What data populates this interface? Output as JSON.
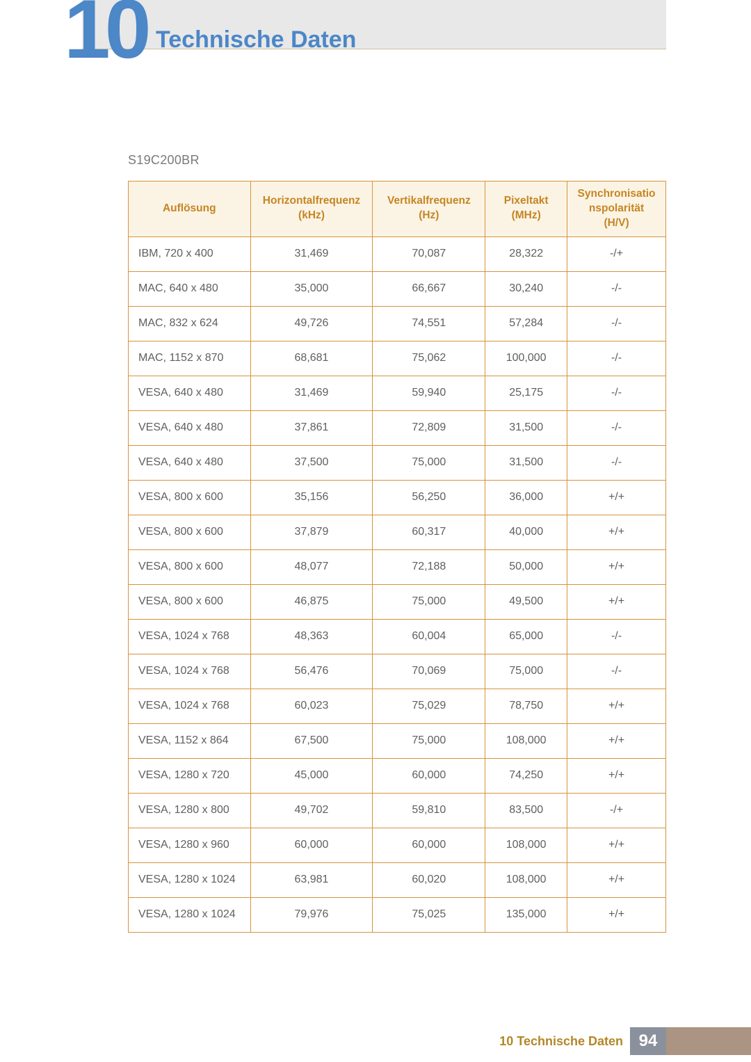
{
  "chapter": {
    "number": "10",
    "title": "Technische Daten"
  },
  "model": "S19C200BR",
  "table": {
    "type": "table",
    "header_bg": "#fbf4e4",
    "border_color": "#d7923e",
    "header_text_color": "#c68524",
    "columns": [
      {
        "label_line1": "Auflösung",
        "label_line2": ""
      },
      {
        "label_line1": "Horizontalfrequenz",
        "label_line2": "(kHz)"
      },
      {
        "label_line1": "Vertikalfrequenz",
        "label_line2": "(Hz)"
      },
      {
        "label_line1": "Pixeltakt",
        "label_line2": "(MHz)"
      },
      {
        "label_line1": "Synchronisatio",
        "label_line2": "nspolarität",
        "label_line3": "(H/V)"
      }
    ],
    "rows": [
      [
        "IBM, 720 x 400",
        "31,469",
        "70,087",
        "28,322",
        "-/+"
      ],
      [
        "MAC, 640 x 480",
        "35,000",
        "66,667",
        "30,240",
        "-/-"
      ],
      [
        "MAC, 832 x 624",
        "49,726",
        "74,551",
        "57,284",
        "-/-"
      ],
      [
        "MAC, 1152 x 870",
        "68,681",
        "75,062",
        "100,000",
        "-/-"
      ],
      [
        "VESA, 640 x 480",
        "31,469",
        "59,940",
        "25,175",
        "-/-"
      ],
      [
        "VESA, 640 x 480",
        "37,861",
        "72,809",
        "31,500",
        "-/-"
      ],
      [
        "VESA, 640 x 480",
        "37,500",
        "75,000",
        "31,500",
        "-/-"
      ],
      [
        "VESA, 800 x 600",
        "35,156",
        "56,250",
        "36,000",
        "+/+"
      ],
      [
        "VESA, 800 x 600",
        "37,879",
        "60,317",
        "40,000",
        "+/+"
      ],
      [
        "VESA, 800 x 600",
        "48,077",
        "72,188",
        "50,000",
        "+/+"
      ],
      [
        "VESA, 800 x 600",
        "46,875",
        "75,000",
        "49,500",
        "+/+"
      ],
      [
        "VESA, 1024 x 768",
        "48,363",
        "60,004",
        "65,000",
        "-/-"
      ],
      [
        "VESA, 1024 x 768",
        "56,476",
        "70,069",
        "75,000",
        "-/-"
      ],
      [
        "VESA, 1024 x 768",
        "60,023",
        "75,029",
        "78,750",
        "+/+"
      ],
      [
        "VESA, 1152 x 864",
        "67,500",
        "75,000",
        "108,000",
        "+/+"
      ],
      [
        "VESA, 1280 x 720",
        "45,000",
        "60,000",
        "74,250",
        "+/+"
      ],
      [
        "VESA, 1280 x 800",
        "49,702",
        "59,810",
        "83,500",
        "-/+"
      ],
      [
        "VESA, 1280 x 960",
        "60,000",
        "60,000",
        "108,000",
        "+/+"
      ],
      [
        "VESA, 1280 x 1024",
        "63,981",
        "60,020",
        "108,000",
        "+/+"
      ],
      [
        "VESA, 1280 x 1024",
        "79,976",
        "75,025",
        "135,000",
        "+/+"
      ]
    ]
  },
  "footer": {
    "text": "10 Technische Daten",
    "page": "94"
  },
  "colors": {
    "header_bg": "#e8e8e8",
    "header_border": "#cdbfa1",
    "heading_blue": "#4c87c7",
    "text": "#5f5f5f",
    "footer_text": "#b38728",
    "footer_page_bg": "#8a919c",
    "footer_strip": "#ab9481"
  }
}
